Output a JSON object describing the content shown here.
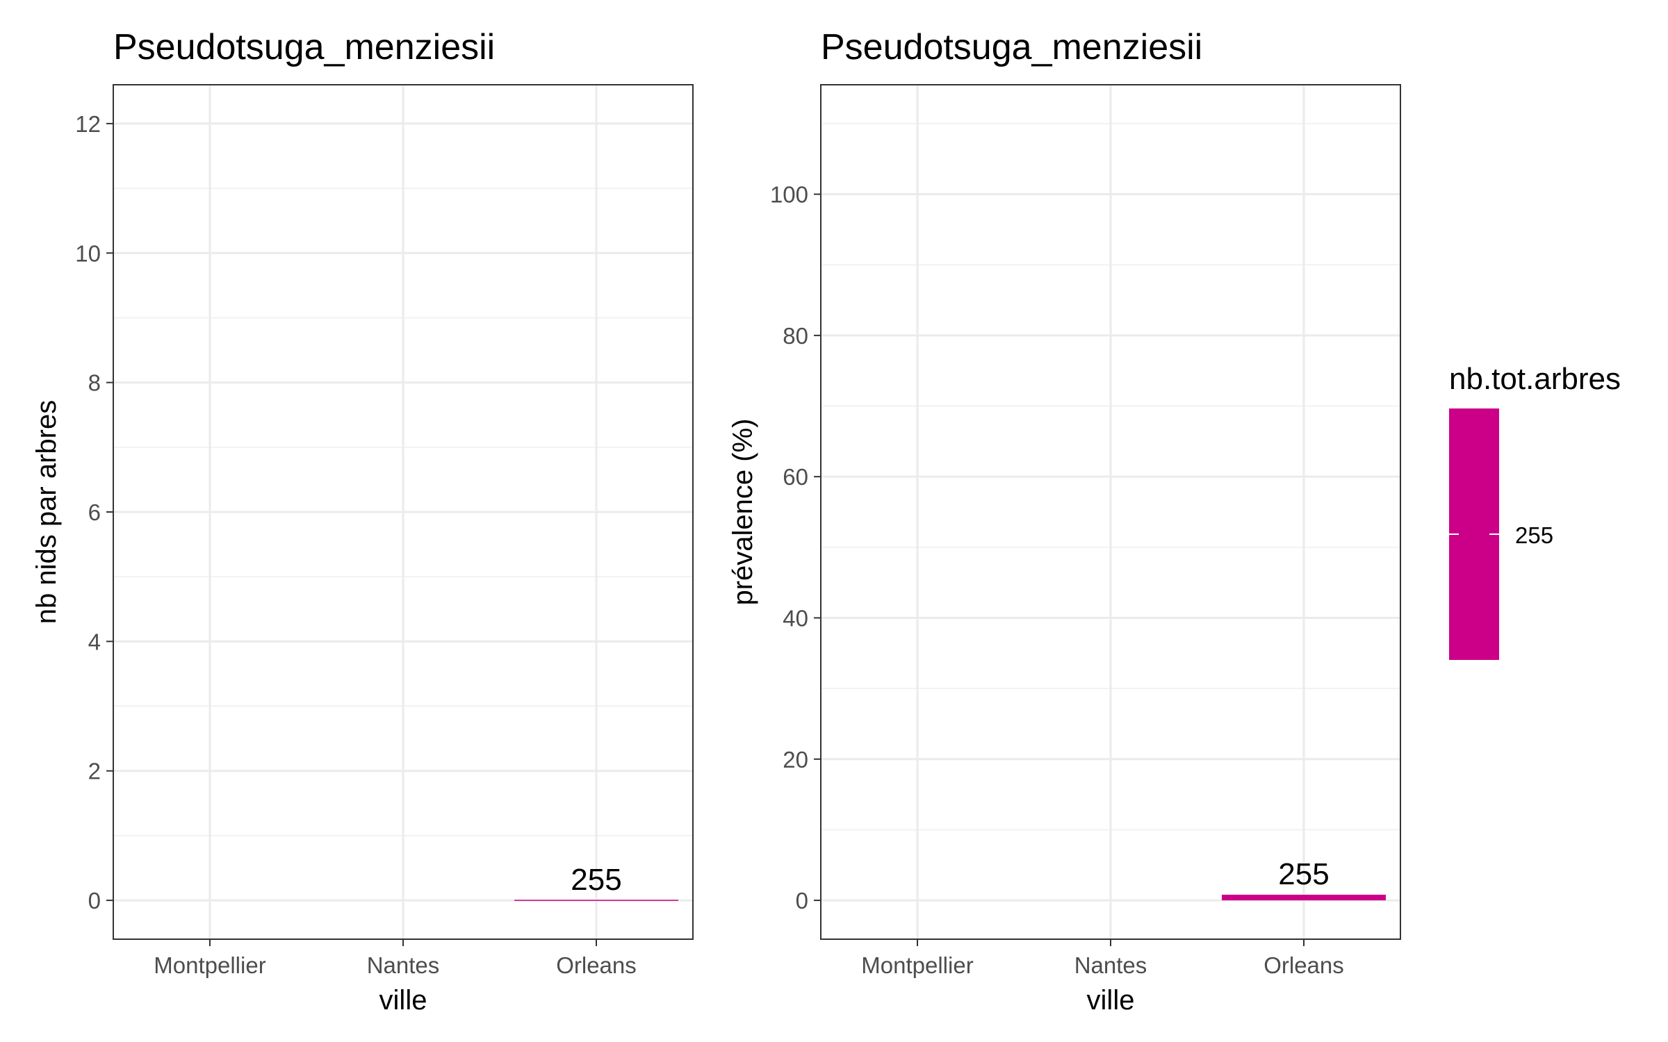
{
  "chart_data": [
    {
      "type": "bar",
      "title": "Pseudotsuga_menziesii",
      "xlabel": "ville",
      "ylabel": "nb nids par arbres",
      "categories": [
        "Montpellier",
        "Nantes",
        "Orleans"
      ],
      "values": [
        null,
        null,
        0
      ],
      "data_labels": [
        "",
        "",
        "255"
      ],
      "ylim": [
        -0.6,
        12.6
      ],
      "yticks": [
        0,
        2,
        4,
        6,
        8,
        10,
        12
      ],
      "grid": true,
      "fill_color": "#cc0088"
    },
    {
      "type": "bar",
      "title": "Pseudotsuga_menziesii",
      "xlabel": "ville",
      "ylabel": "prévalence (%)",
      "categories": [
        "Montpellier",
        "Nantes",
        "Orleans"
      ],
      "values": [
        null,
        null,
        0.8
      ],
      "data_labels": [
        "",
        "",
        "255"
      ],
      "ylim": [
        -5.5,
        115.5
      ],
      "yticks": [
        0,
        20,
        40,
        60,
        80,
        100
      ],
      "grid": true,
      "fill_color": "#cc0088"
    }
  ],
  "legend": {
    "title": "nb.tot.arbres",
    "label": "255",
    "color": "#cc0088",
    "placement": "right"
  }
}
